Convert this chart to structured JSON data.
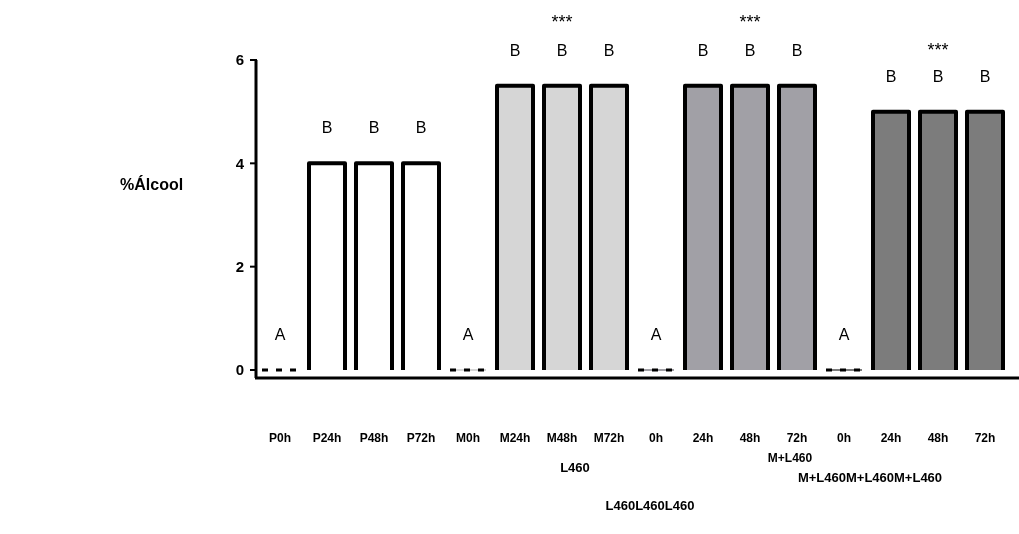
{
  "chart_data": {
    "type": "bar",
    "ylabel": "%Álcool",
    "categories": [
      "P0h",
      "P24h",
      "P48h",
      "P72h",
      "M0h",
      "M24h",
      "M48h",
      "M72h",
      "0h",
      "24h",
      "48h",
      "72h",
      "0h",
      "24h",
      "48h",
      "72h"
    ],
    "values": [
      0,
      4,
      4,
      4,
      0,
      5.5,
      5.5,
      5.5,
      0,
      5.5,
      5.5,
      5.5,
      0,
      5,
      5,
      5
    ],
    "colors": [
      "#ffffff",
      "#ffffff",
      "#ffffff",
      "#ffffff",
      "#d6d6d6",
      "#d6d6d6",
      "#d6d6d6",
      "#d6d6d6",
      "#a1a0a6",
      "#a1a0a6",
      "#a1a0a6",
      "#a1a0a6",
      "#7c7c7c",
      "#7c7c7c",
      "#7c7c7c",
      "#7c7c7c"
    ],
    "value_labels": [
      "A",
      "B",
      "B",
      "B",
      "A",
      "B",
      "B",
      "B",
      "A",
      "B",
      "B",
      "B",
      "A",
      "B",
      "B",
      "B"
    ],
    "ylim": [
      0,
      6
    ],
    "yticks": [
      0,
      2,
      4,
      6
    ],
    "grid": false,
    "annotations": [
      "***",
      "***",
      "***",
      "L460",
      "M+L460",
      "L460L460L460",
      "M+L460M+L460M+L460"
    ]
  }
}
